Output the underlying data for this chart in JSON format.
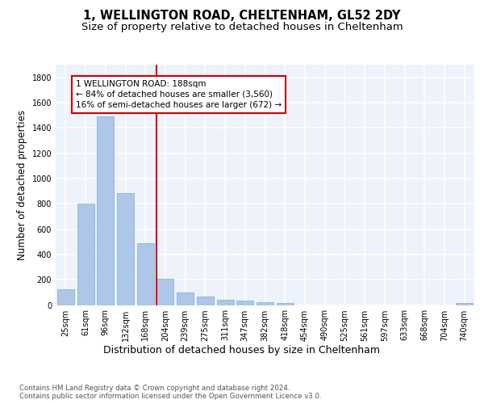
{
  "title": "1, WELLINGTON ROAD, CHELTENHAM, GL52 2DY",
  "subtitle": "Size of property relative to detached houses in Cheltenham",
  "xlabel": "Distribution of detached houses by size in Cheltenham",
  "ylabel": "Number of detached properties",
  "footnote": "Contains HM Land Registry data © Crown copyright and database right 2024.\nContains public sector information licensed under the Open Government Licence v3.0.",
  "categories": [
    "25sqm",
    "61sqm",
    "96sqm",
    "132sqm",
    "168sqm",
    "204sqm",
    "239sqm",
    "275sqm",
    "311sqm",
    "347sqm",
    "382sqm",
    "418sqm",
    "454sqm",
    "490sqm",
    "525sqm",
    "561sqm",
    "597sqm",
    "633sqm",
    "668sqm",
    "704sqm",
    "740sqm"
  ],
  "values": [
    125,
    800,
    1490,
    885,
    490,
    205,
    100,
    65,
    40,
    32,
    25,
    15,
    0,
    0,
    0,
    0,
    0,
    0,
    0,
    0,
    15
  ],
  "bar_color": "#aec6e8",
  "bar_edge_color": "#7aafd4",
  "annotation_text_line1": "1 WELLINGTON ROAD: 188sqm",
  "annotation_text_line2": "← 84% of detached houses are smaller (3,560)",
  "annotation_text_line3": "16% of semi-detached houses are larger (672) →",
  "ylim": [
    0,
    1900
  ],
  "yticks": [
    0,
    200,
    400,
    600,
    800,
    1000,
    1200,
    1400,
    1600,
    1800
  ],
  "bg_color": "#eef2fa",
  "grid_color": "#ffffff",
  "title_fontsize": 10.5,
  "subtitle_fontsize": 9.5,
  "ylabel_fontsize": 8.5,
  "xlabel_fontsize": 9,
  "tick_fontsize": 7,
  "annot_fontsize": 7.5,
  "footnote_fontsize": 6.2
}
